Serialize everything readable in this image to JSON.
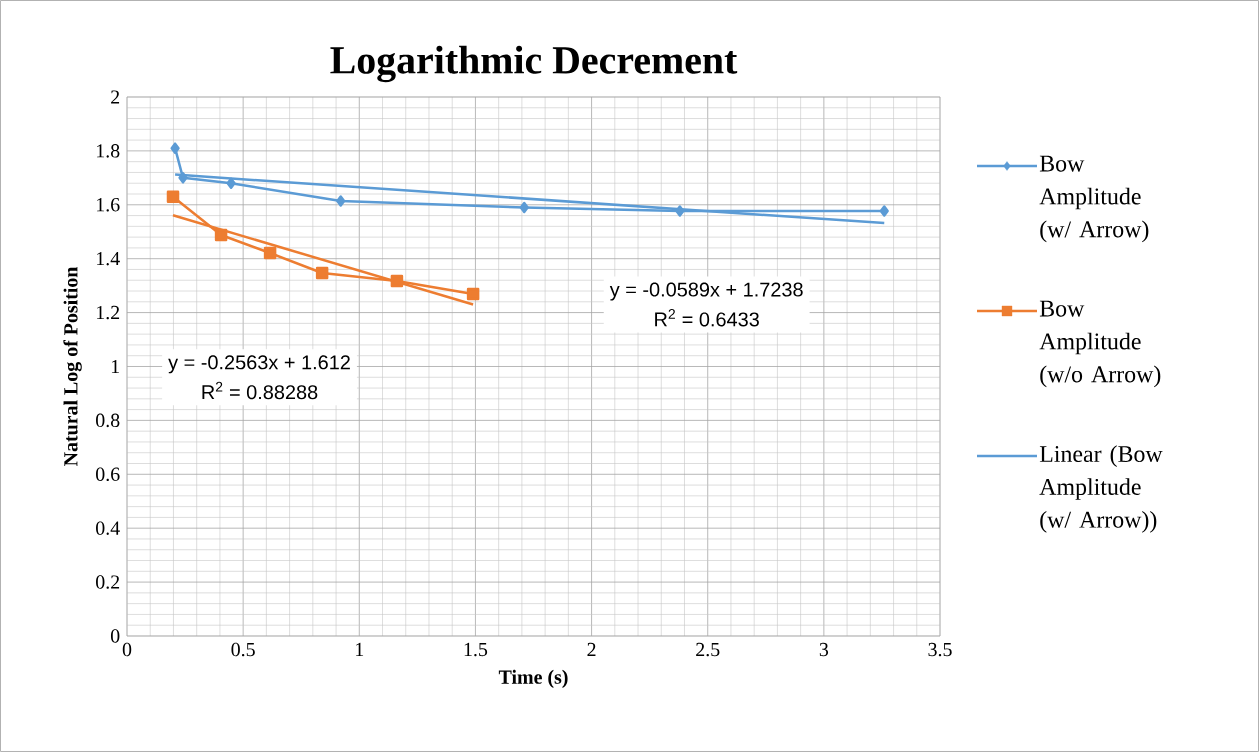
{
  "chart_data": {
    "type": "line",
    "title": "Logarithmic Decrement",
    "xlabel": "Time (s)",
    "ylabel": "Natural Log of Position",
    "xlim": [
      0,
      3.5
    ],
    "ylim": [
      0,
      2
    ],
    "xticks": [
      0,
      0.5,
      1,
      1.5,
      2,
      2.5,
      3,
      3.5
    ],
    "yticks": [
      0,
      0.2,
      0.4,
      0.6,
      0.8,
      1,
      1.2,
      1.4,
      1.6,
      1.8,
      2
    ],
    "grid": true,
    "legend": "right",
    "series": [
      {
        "name": "Bow Amplitude (w/ Arrow)",
        "color": "#5b9bd5",
        "marker": "diamond",
        "x": [
          0.207,
          0.241,
          0.448,
          0.92,
          1.71,
          2.38,
          3.26
        ],
        "values": [
          1.81,
          1.7,
          1.68,
          1.614,
          1.59,
          1.577,
          1.577
        ]
      },
      {
        "name": "Bow Amplitude (w/o Arrow)",
        "color": "#ed7d31",
        "marker": "square",
        "x": [
          0.198,
          0.405,
          0.616,
          0.84,
          1.162,
          1.49
        ],
        "values": [
          1.63,
          1.488,
          1.421,
          1.347,
          1.317,
          1.269
        ]
      },
      {
        "name": "Linear  (Bow Amplitude (w/ Arrow))",
        "color": "#5b9bd5",
        "marker": "none",
        "x": [
          0.207,
          3.26
        ],
        "values": [
          1.712,
          1.532
        ]
      },
      {
        "color": "#ed7d31",
        "marker": "none",
        "x": [
          0.198,
          1.49
        ],
        "values": [
          1.561,
          1.23
        ]
      }
    ],
    "annotations": [
      "y = -0.0589x + 1.7238",
      "R$^{2}$ = 0.6433",
      "y = -0.2563x + 1.612",
      "R$^{2}$ = 0.88288"
    ]
  }
}
